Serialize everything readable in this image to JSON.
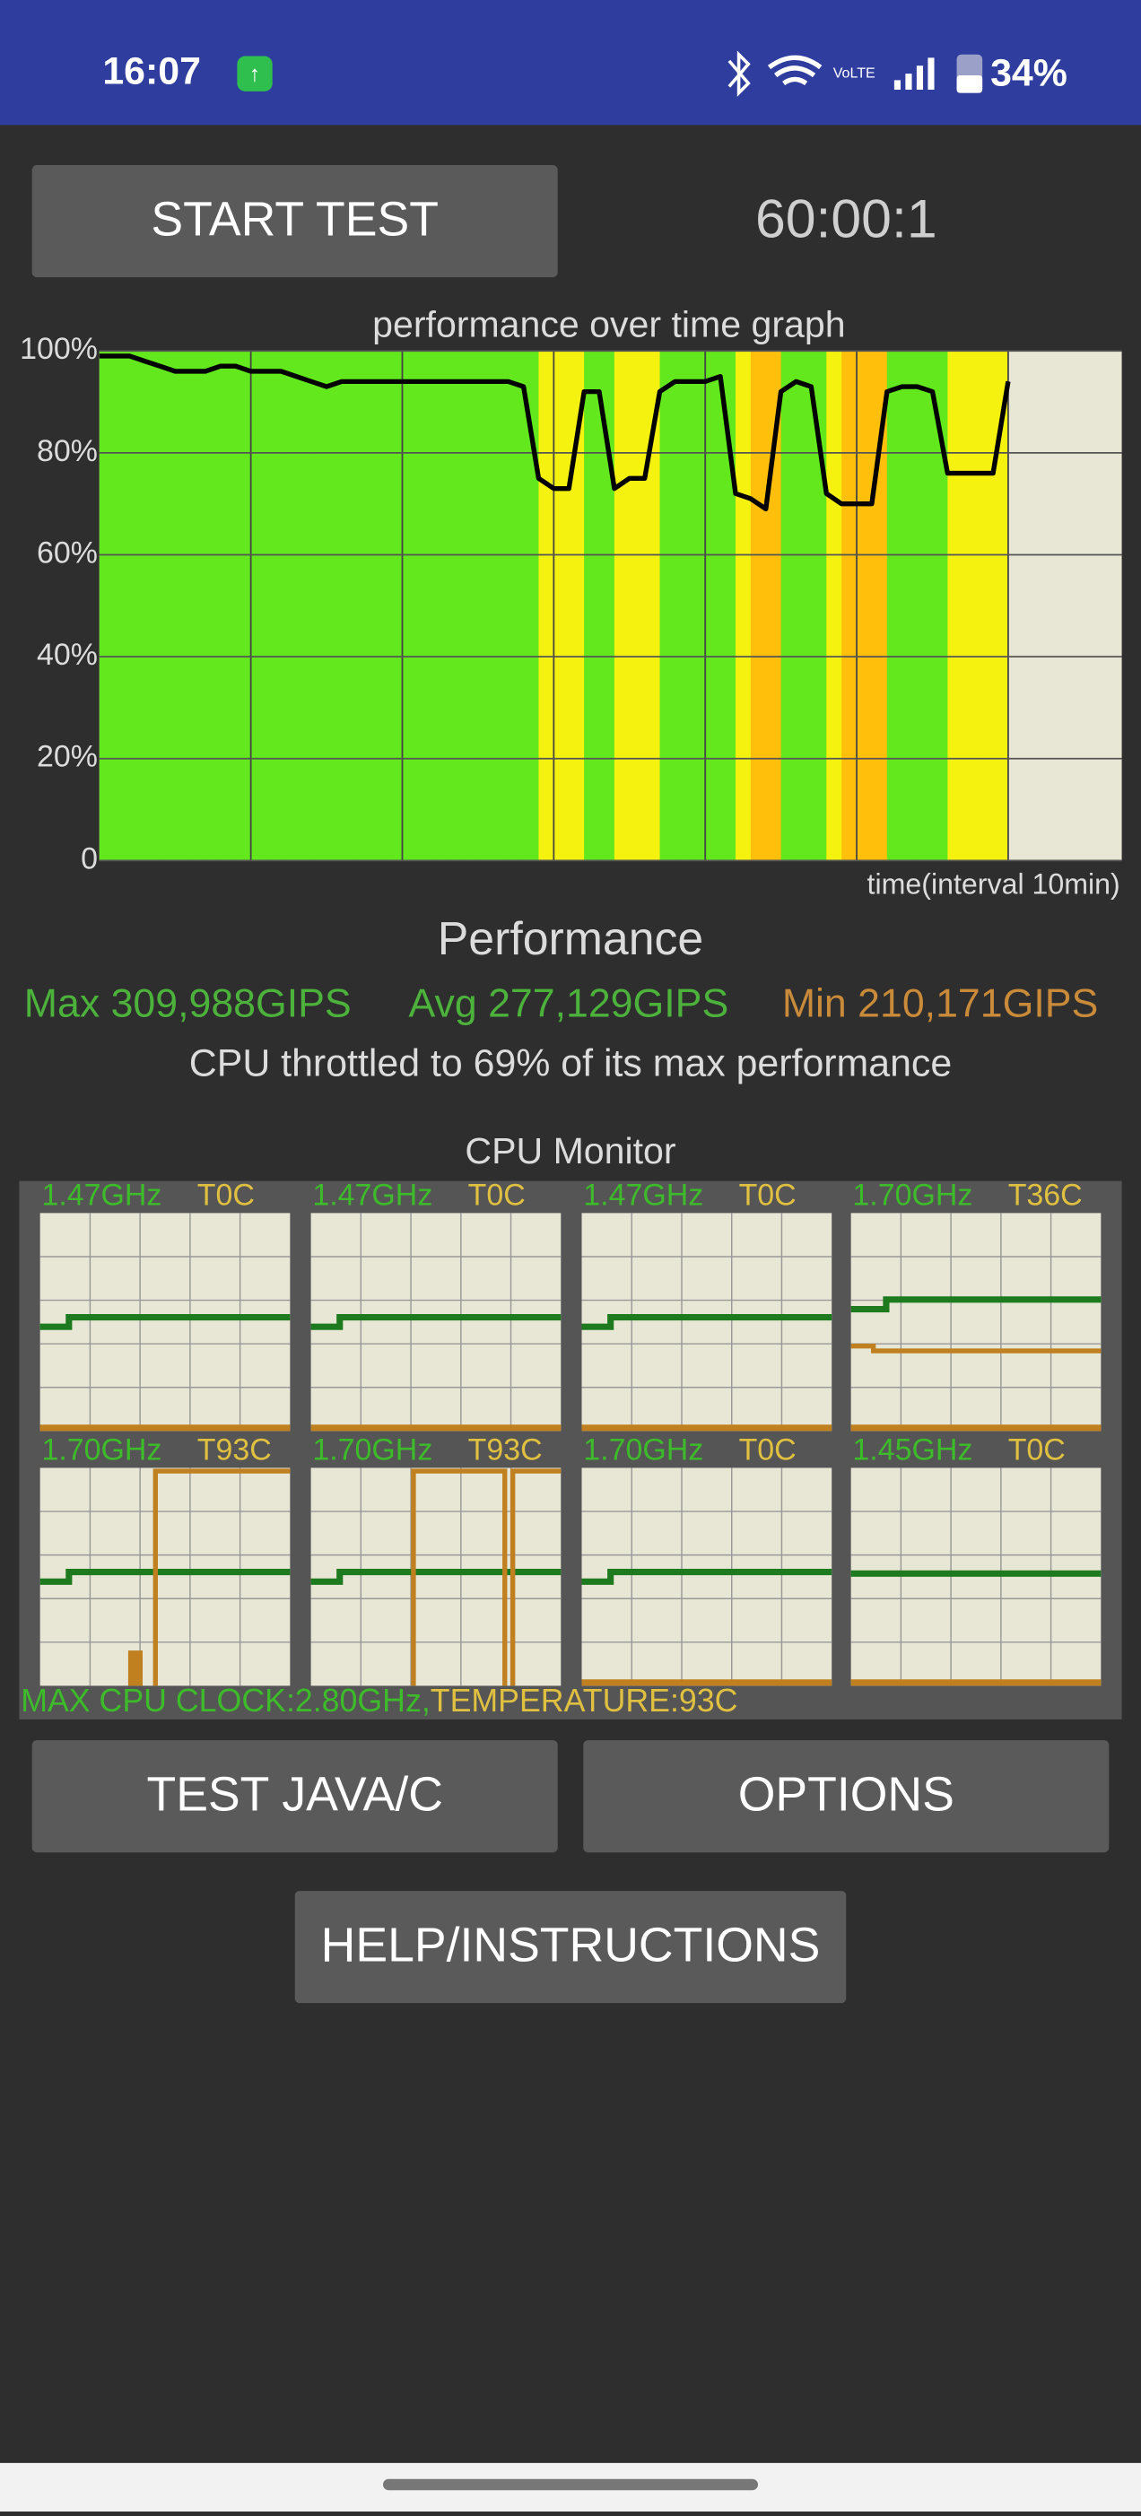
{
  "status_bar": {
    "time": "16:07",
    "volte": "VoLTE",
    "battery": "34%"
  },
  "buttons": {
    "start": "START TEST",
    "java": "TEST JAVA/C",
    "options": "OPTIONS",
    "help": "HELP/INSTRUCTIONS"
  },
  "timer": "60:00:1",
  "chart_data": {
    "type": "line",
    "title": "performance over time graph",
    "x_label": "time(interval 10min)",
    "x": [
      0,
      1,
      2,
      3,
      4,
      5,
      6,
      7,
      8,
      9,
      10,
      11,
      12,
      13,
      14,
      15,
      16,
      17,
      18,
      19,
      20,
      21,
      22,
      23,
      24,
      25,
      26,
      27,
      28,
      29,
      30,
      31,
      32,
      33,
      34,
      35,
      36,
      37,
      38,
      39,
      40,
      41,
      42,
      43,
      44,
      45,
      46,
      47,
      48,
      49,
      50,
      51,
      52,
      53,
      54,
      55,
      56,
      57,
      58,
      59,
      60
    ],
    "series": [
      {
        "color": "#000000",
        "values": [
          99,
          99,
          99,
          98,
          97,
          96,
          96,
          96,
          97,
          97,
          96,
          96,
          96,
          95,
          94,
          93,
          94,
          94,
          94,
          94,
          94,
          94,
          94,
          94,
          94,
          94,
          94,
          94,
          93,
          75,
          73,
          73,
          92,
          92,
          73,
          75,
          75,
          92,
          94,
          94,
          94,
          95,
          72,
          71,
          69,
          92,
          94,
          93,
          72,
          70,
          70,
          70,
          92,
          93,
          93,
          92,
          76,
          76,
          76,
          76,
          94
        ]
      }
    ],
    "xlim": [
      0,
      67.5
    ],
    "xticks": [
      10,
      20,
      30,
      40,
      50,
      60
    ],
    "ylim": [
      0,
      100
    ],
    "yticks": [
      0,
      {
        "value": 20,
        "label": "20%"
      },
      {
        "value": 40,
        "label": "40%"
      },
      {
        "value": 60,
        "label": "60%"
      },
      {
        "value": 80,
        "label": "80%"
      },
      {
        "value": 100,
        "label": "100%"
      }
    ],
    "grid": true
  },
  "performance": {
    "title": "Performance",
    "max": "Max 309,988GIPS",
    "avg": "Avg 277,129GIPS",
    "min": "Min 210,171GIPS",
    "throttle": "CPU throttled to 69% of its max performance"
  },
  "cpu_monitor": {
    "title": "CPU Monitor",
    "cores": [
      {
        "freq": "1.47GHz",
        "temp": "T0C"
      },
      {
        "freq": "1.47GHz",
        "temp": "T0C"
      },
      {
        "freq": "1.47GHz",
        "temp": "T0C"
      },
      {
        "freq": "1.70GHz",
        "temp": "T36C"
      },
      {
        "freq": "1.70GHz",
        "temp": "T93C"
      },
      {
        "freq": "1.70GHz",
        "temp": "T93C"
      },
      {
        "freq": "1.70GHz",
        "temp": "T0C"
      },
      {
        "freq": "1.45GHz",
        "temp": "T0C"
      }
    ],
    "max_clock": "MAX CPU CLOCK:2.80GHz,",
    "max_temp": "TEMPERATURE:93C"
  }
}
